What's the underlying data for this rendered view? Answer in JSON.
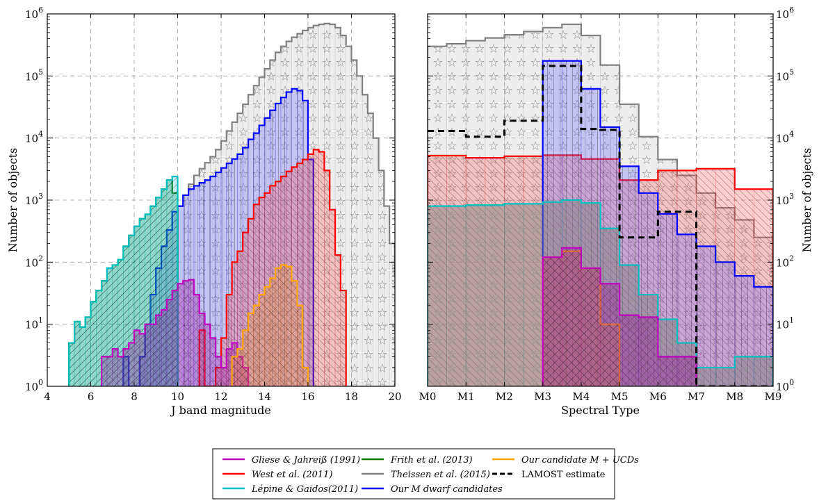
{
  "chart_data": [
    {
      "type": "histogram",
      "xlabel": "J band magnitude",
      "ylabel": "Number of objects",
      "xlim": [
        4,
        20
      ],
      "ylim": [
        1,
        1000000
      ],
      "yscale": "log",
      "xticks": [
        "4",
        "6",
        "8",
        "10",
        "12",
        "14",
        "16",
        "18",
        "20"
      ],
      "yticks": [
        {
          "base": "10",
          "exp": "0"
        },
        {
          "base": "10",
          "exp": "1"
        },
        {
          "base": "10",
          "exp": "2"
        },
        {
          "base": "10",
          "exp": "3"
        },
        {
          "base": "10",
          "exp": "4"
        },
        {
          "base": "10",
          "exp": "5"
        },
        {
          "base": "10",
          "exp": "6"
        }
      ],
      "grid": true,
      "bin_width": 0.25,
      "series": [
        {
          "name": "Theissen et al. (2015)",
          "x0": 10.0,
          "color": "#808080",
          "values": [
            800,
            1200,
            1800,
            2500,
            3200,
            4000,
            5000,
            6500,
            9000,
            13000,
            18000,
            25000,
            35000,
            50000,
            70000,
            95000,
            130000,
            180000,
            240000,
            300000,
            360000,
            420000,
            480000,
            540000,
            600000,
            650000,
            680000,
            700000,
            680000,
            600000,
            450000,
            300000,
            180000,
            100000,
            50000,
            25000,
            10000,
            3000,
            800,
            200,
            60,
            30,
            25,
            10
          ]
        },
        {
          "name": "Our M dwarf candidates",
          "x0": 7.5,
          "color": "#0000ff",
          "values": [
            3,
            1,
            1,
            3,
            10,
            30,
            80,
            180,
            330,
            650,
            800,
            1200,
            1500,
            1700,
            1900,
            2100,
            2400,
            2800,
            3300,
            3900,
            4600,
            5500,
            7000,
            9500,
            12000,
            16000,
            21000,
            28000,
            36000,
            45000,
            55000,
            62000,
            58000,
            40000,
            4500
          ]
        },
        {
          "name": "West et al. (2011)",
          "x0": 11.0,
          "color": "#ff0000",
          "values": [
            8,
            1,
            1,
            2,
            6,
            30,
            100,
            150,
            300,
            500,
            850,
            1100,
            1300,
            1700,
            2000,
            2400,
            2900,
            3400,
            3900,
            4500,
            5500,
            6500,
            6000,
            3000,
            700,
            130,
            35
          ]
        },
        {
          "name": "Frith et al. (2013)",
          "x0": 5.0,
          "color": "#008000",
          "values": [
            5,
            11,
            9,
            13,
            23,
            35,
            50,
            80,
            90,
            110,
            180,
            270,
            380,
            500,
            590,
            800,
            1100,
            1500,
            2100,
            1300
          ]
        },
        {
          "name": "Lépine & Gaidos(2011)",
          "x0": 5.0,
          "color": "#00bfbf",
          "values": [
            5,
            11,
            9,
            13,
            23,
            35,
            50,
            80,
            90,
            110,
            180,
            270,
            380,
            500,
            590,
            800,
            1100,
            1500,
            2100,
            2400
          ]
        },
        {
          "name": "Gliese & Jahreiß (1991)",
          "x0": 6.5,
          "color": "#bf00bf",
          "values": [
            3,
            3,
            4,
            3,
            4,
            5,
            8,
            7,
            10,
            10,
            14,
            17,
            25,
            35,
            45,
            50,
            52,
            30,
            15,
            10,
            6,
            3,
            2,
            4,
            5,
            3,
            2
          ]
        },
        {
          "name": "Our candidate M + UCDs",
          "x0": 12.5,
          "color": "#ffa500",
          "values": [
            3,
            4,
            8,
            15,
            20,
            30,
            40,
            55,
            80,
            90,
            85,
            50,
            20,
            2
          ]
        }
      ]
    },
    {
      "type": "histogram",
      "xlabel": "Spectral Type",
      "ylabel": "Number of objects",
      "xlim": [
        0,
        9
      ],
      "ylim": [
        1,
        1000000
      ],
      "yscale": "log",
      "xticks": [
        "M0",
        "M1",
        "M2",
        "M3",
        "M4",
        "M5",
        "M6",
        "M7",
        "M8",
        "M9"
      ],
      "yticks": [
        {
          "base": "10",
          "exp": "0"
        },
        {
          "base": "10",
          "exp": "1"
        },
        {
          "base": "10",
          "exp": "2"
        },
        {
          "base": "10",
          "exp": "3"
        },
        {
          "base": "10",
          "exp": "4"
        },
        {
          "base": "10",
          "exp": "5"
        },
        {
          "base": "10",
          "exp": "6"
        }
      ],
      "grid": true,
      "bin_width": 0.5,
      "series": [
        {
          "name": "Theissen et al. (2015)",
          "x0": 0,
          "color": "#808080",
          "values": [
            300000,
            330000,
            370000,
            410000,
            460000,
            520000,
            600000,
            680000,
            450000,
            150000,
            35000,
            10500,
            4500,
            2500,
            1300,
            750,
            480,
            250
          ]
        },
        {
          "name": "West et al. (2011)",
          "x0": 0,
          "color": "#ff0000",
          "values": [
            5200,
            5200,
            4800,
            4800,
            5100,
            5100,
            5300,
            5300,
            4600,
            4600,
            2100,
            2100,
            3000,
            3000,
            3200,
            3200,
            1500,
            1500
          ]
        },
        {
          "name": "Our M dwarf candidates",
          "x0": 3,
          "color": "#0000ff",
          "values": [
            175000,
            175000,
            62000,
            15000,
            3500,
            1300,
            600,
            280,
            180,
            100,
            60,
            40
          ]
        },
        {
          "name": "Lépine & Gaidos(2011)",
          "x0": 0,
          "color": "#00bfbf",
          "values": [
            800,
            800,
            830,
            830,
            870,
            870,
            930,
            1000,
            900,
            350,
            90,
            30,
            12,
            5,
            2,
            2,
            3,
            3
          ]
        },
        {
          "name": "Our candidate M + UCDs",
          "x0": 3,
          "color": "#ffa500",
          "values": [
            120,
            150,
            80,
            10
          ]
        },
        {
          "name": "Gliese & Jahreiß (1991)",
          "x0": 3,
          "color": "#bf00bf",
          "values": [
            120,
            170,
            80,
            45,
            14,
            13,
            3,
            3
          ]
        },
        {
          "name": "LAMOST estimate",
          "x0": 0,
          "color": "#000000",
          "style": "dashed",
          "values": [
            13000,
            13000,
            10500,
            10500,
            19000,
            19000,
            145000,
            145000,
            14000,
            13500,
            250,
            250,
            650,
            650,
            1,
            1,
            1,
            1
          ]
        }
      ]
    }
  ],
  "legend": {
    "placement": "bottom-center",
    "items": [
      {
        "label": "Gliese & Jahreiß (1991)",
        "color": "#bf00bf",
        "style": "solid"
      },
      {
        "label": "West et al. (2011)",
        "color": "#ff0000",
        "style": "solid"
      },
      {
        "label": "Lépine & Gaidos(2011)",
        "color": "#00bfbf",
        "style": "solid"
      },
      {
        "label": "Frith et al. (2013)",
        "color": "#008000",
        "style": "solid"
      },
      {
        "label": "Theissen et al. (2015)",
        "color": "#808080",
        "style": "solid"
      },
      {
        "label": "Our M dwarf candidates",
        "color": "#0000ff",
        "style": "solid"
      },
      {
        "label": "Our candidate M + UCDs",
        "color": "#ffa500",
        "style": "solid"
      },
      {
        "label": "LAMOST estimate",
        "color": "#000000",
        "style": "dashed"
      }
    ]
  }
}
